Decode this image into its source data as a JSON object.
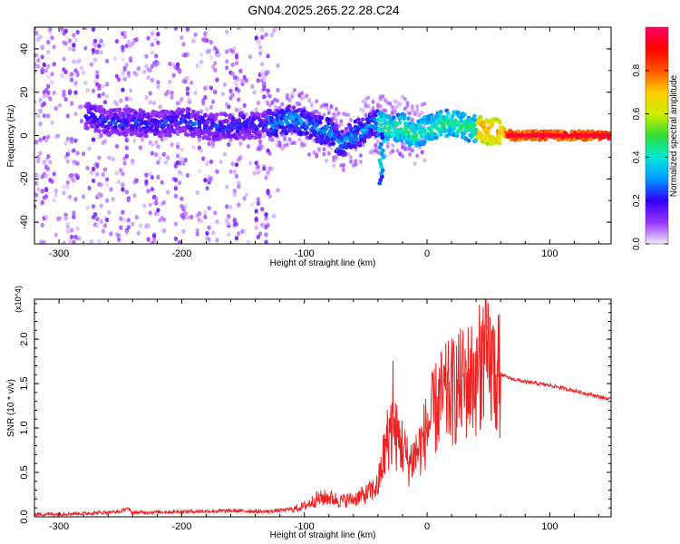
{
  "title": "GN04.2025.265.22.28.C24",
  "chart_data": [
    {
      "type": "heatmap",
      "xlabel": "Height of straight line (km)",
      "ylabel": "Frequency (Hz)",
      "xlim": [
        -320,
        150
      ],
      "ylim": [
        -50,
        50
      ],
      "xticks": [
        -300,
        -200,
        -100,
        0,
        100
      ],
      "yticks": [
        -40,
        -20,
        0,
        20,
        40
      ],
      "colorbar": {
        "label": "Normalized spectral amplitude",
        "range": [
          0,
          1
        ],
        "ticks": [
          0.0,
          0.2,
          0.4,
          0.6,
          0.8
        ],
        "colors": [
          "#f0e8ff",
          "#9933ff",
          "#3300ff",
          "#0099ff",
          "#00e8d8",
          "#33dd33",
          "#ccee00",
          "#ffcc00",
          "#ff5500",
          "#ff0000",
          "#ff0066"
        ]
      },
      "ridge": {
        "x": [
          -275,
          -260,
          -240,
          -220,
          -200,
          -180,
          -160,
          -140,
          -120,
          -110,
          -100,
          -90,
          -80,
          -70,
          -60,
          -50,
          -40,
          -30,
          -20,
          -10,
          0,
          10,
          20,
          30,
          40,
          50,
          60,
          70,
          150
        ],
        "y": [
          9,
          6,
          6,
          5,
          7,
          4,
          4,
          5,
          6,
          8,
          6,
          3,
          2,
          -4,
          0,
          3,
          6,
          3,
          4,
          0,
          3,
          5,
          6,
          4,
          3,
          2,
          2,
          0,
          0
        ]
      }
    },
    {
      "type": "line",
      "xlabel": "Height of straight line (km)",
      "ylabel": "SNR (10 * v/v)",
      "y_multiplier": "(x10^4)",
      "xlim": [
        -320,
        150
      ],
      "ylim": [
        0,
        2.45
      ],
      "xticks": [
        -300,
        -200,
        -100,
        0,
        100
      ],
      "yticks": [
        0.0,
        0.5,
        1.0,
        1.5,
        2.0
      ],
      "series": [
        {
          "color": "#ee2222",
          "x": [
            -320,
            -280,
            -250,
            -245,
            -240,
            -200,
            -160,
            -130,
            -110,
            -100,
            -90,
            -80,
            -70,
            -60,
            -50,
            -40,
            -35,
            -30,
            -25,
            -20,
            -15,
            -10,
            -5,
            0,
            10,
            20,
            30,
            40,
            45,
            50,
            55,
            60,
            70,
            80,
            100,
            120,
            150
          ],
          "y": [
            0.02,
            0.03,
            0.05,
            0.09,
            0.04,
            0.05,
            0.06,
            0.05,
            0.08,
            0.12,
            0.2,
            0.22,
            0.18,
            0.2,
            0.25,
            0.35,
            0.7,
            1.0,
            0.9,
            0.8,
            0.6,
            0.7,
            0.8,
            1.0,
            1.3,
            1.4,
            1.5,
            1.6,
            1.75,
            1.7,
            1.65,
            1.6,
            1.55,
            1.52,
            1.48,
            1.42,
            1.32
          ]
        }
      ]
    }
  ]
}
